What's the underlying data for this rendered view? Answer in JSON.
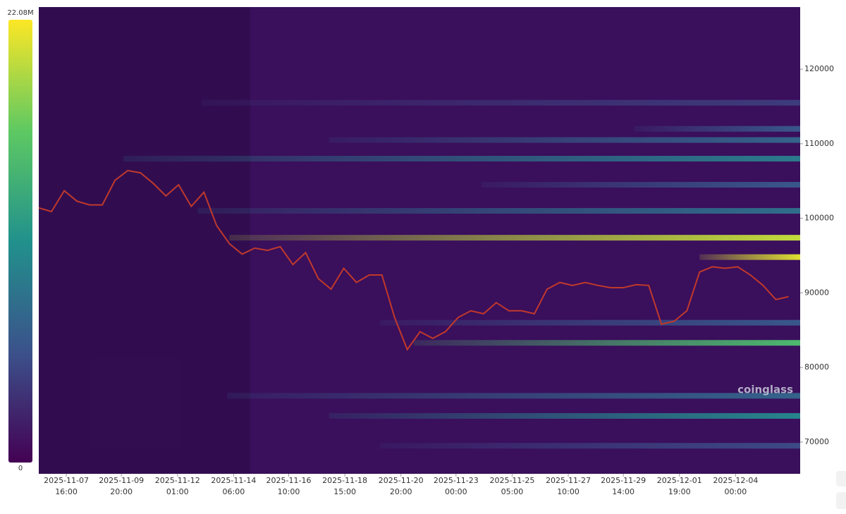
{
  "chart_data": {
    "type": "heatmap",
    "watermark": "coinglass",
    "xlim": [
      "2025-11-06 14:00",
      "2025-12-06 13:00"
    ],
    "ylim": [
      65740,
      128330
    ],
    "yticks": [
      70000,
      80000,
      90000,
      100000,
      110000,
      120000
    ],
    "xticks": [
      "2025-11-07 16:00",
      "2025-11-09 20:00",
      "2025-11-12 01:00",
      "2025-11-14 06:00",
      "2025-11-16 10:00",
      "2025-11-18 15:00",
      "2025-11-20 20:00",
      "2025-11-23 00:00",
      "2025-11-25 05:00",
      "2025-11-27 10:00",
      "2025-11-29 14:00",
      "2025-12-01 19:00",
      "2025-12-04 00:00"
    ],
    "colorbar": {
      "colors": [
        "#440154",
        "#3b528b",
        "#21918c",
        "#5ec962",
        "#fde725"
      ],
      "ticks": [
        {
          "value": 22080000,
          "label": "22.08M"
        },
        0
      ]
    },
    "x": [
      "2025-11-06 14:00",
      "2025-11-07 02:00",
      "2025-11-07 14:00",
      "2025-11-08 02:00",
      "2025-11-08 14:00",
      "2025-11-09 02:00",
      "2025-11-09 14:00",
      "2025-11-10 02:00",
      "2025-11-10 14:00",
      "2025-11-11 02:00",
      "2025-11-11 14:00",
      "2025-11-12 02:00",
      "2025-11-12 14:00",
      "2025-11-13 02:00",
      "2025-11-13 14:00",
      "2025-11-14 02:00",
      "2025-11-14 14:00",
      "2025-11-15 02:00",
      "2025-11-15 14:00",
      "2025-11-16 02:00",
      "2025-11-16 14:00",
      "2025-11-17 02:00",
      "2025-11-17 14:00",
      "2025-11-18 02:00",
      "2025-11-18 14:00",
      "2025-11-19 02:00",
      "2025-11-19 14:00",
      "2025-11-20 02:00",
      "2025-11-20 14:00",
      "2025-11-21 02:00",
      "2025-11-21 14:00",
      "2025-11-22 02:00",
      "2025-11-22 14:00",
      "2025-11-23 02:00",
      "2025-11-23 14:00",
      "2025-11-24 02:00",
      "2025-11-24 14:00",
      "2025-11-25 02:00",
      "2025-11-25 14:00",
      "2025-11-26 02:00",
      "2025-11-26 14:00",
      "2025-11-27 02:00",
      "2025-11-27 14:00",
      "2025-11-28 02:00",
      "2025-11-28 14:00",
      "2025-11-29 02:00",
      "2025-11-29 14:00",
      "2025-11-30 02:00",
      "2025-11-30 14:00",
      "2025-12-01 02:00",
      "2025-12-01 14:00",
      "2025-12-02 02:00",
      "2025-12-02 14:00",
      "2025-12-03 02:00",
      "2025-12-03 14:00",
      "2025-12-04 02:00",
      "2025-12-04 14:00",
      "2025-12-05 02:00",
      "2025-12-05 14:00",
      "2025-12-06 02:00"
    ],
    "series": [
      {
        "color": "#c0392b",
        "values": [
          101400,
          100900,
          103700,
          102300,
          101800,
          101800,
          105100,
          106400,
          106100,
          104700,
          103000,
          104500,
          101600,
          103500,
          99000,
          96600,
          95200,
          96000,
          95700,
          96200,
          93800,
          95400,
          91900,
          90500,
          93300,
          91400,
          92400,
          92400,
          86700,
          82400,
          84800,
          83900,
          84800,
          86700,
          87600,
          87200,
          88700,
          87600,
          87600,
          87200,
          90500,
          91400,
          91000,
          91400,
          91000,
          90700,
          90700,
          91100,
          91000,
          85800,
          86200,
          87600,
          92800,
          93500,
          93300,
          93500,
          92400,
          91000,
          89100,
          89500
        ]
      }
    ],
    "bands": [
      {
        "price": 108000,
        "start": "2025-11-09 22:00",
        "value": 9000000
      },
      {
        "price": 97400,
        "start": "2025-11-14 02:00",
        "value": 20000000
      },
      {
        "price": 94800,
        "start": "2025-12-02 14:00",
        "value": 21000000
      },
      {
        "price": 83300,
        "start": "2025-11-21 08:00",
        "value": 15000000
      },
      {
        "price": 73500,
        "start": "2025-11-18 00:00",
        "value": 10000000
      },
      {
        "price": 101000,
        "start": "2025-11-12 20:00",
        "value": 8000000
      },
      {
        "price": 110500,
        "start": "2025-11-18 00:00",
        "value": 7000000
      },
      {
        "price": 104500,
        "start": "2025-11-24 00:00",
        "value": 6000000
      },
      {
        "price": 76200,
        "start": "2025-11-14 00:00",
        "value": 7000000
      },
      {
        "price": 86000,
        "start": "2025-11-20 00:00",
        "value": 6000000
      },
      {
        "price": 112000,
        "start": "2025-11-30 00:00",
        "value": 6000000
      },
      {
        "price": 115500,
        "start": "2025-11-13 00:00",
        "value": 4000000
      },
      {
        "price": 69500,
        "start": "2025-11-20 00:00",
        "value": 5000000
      }
    ]
  }
}
